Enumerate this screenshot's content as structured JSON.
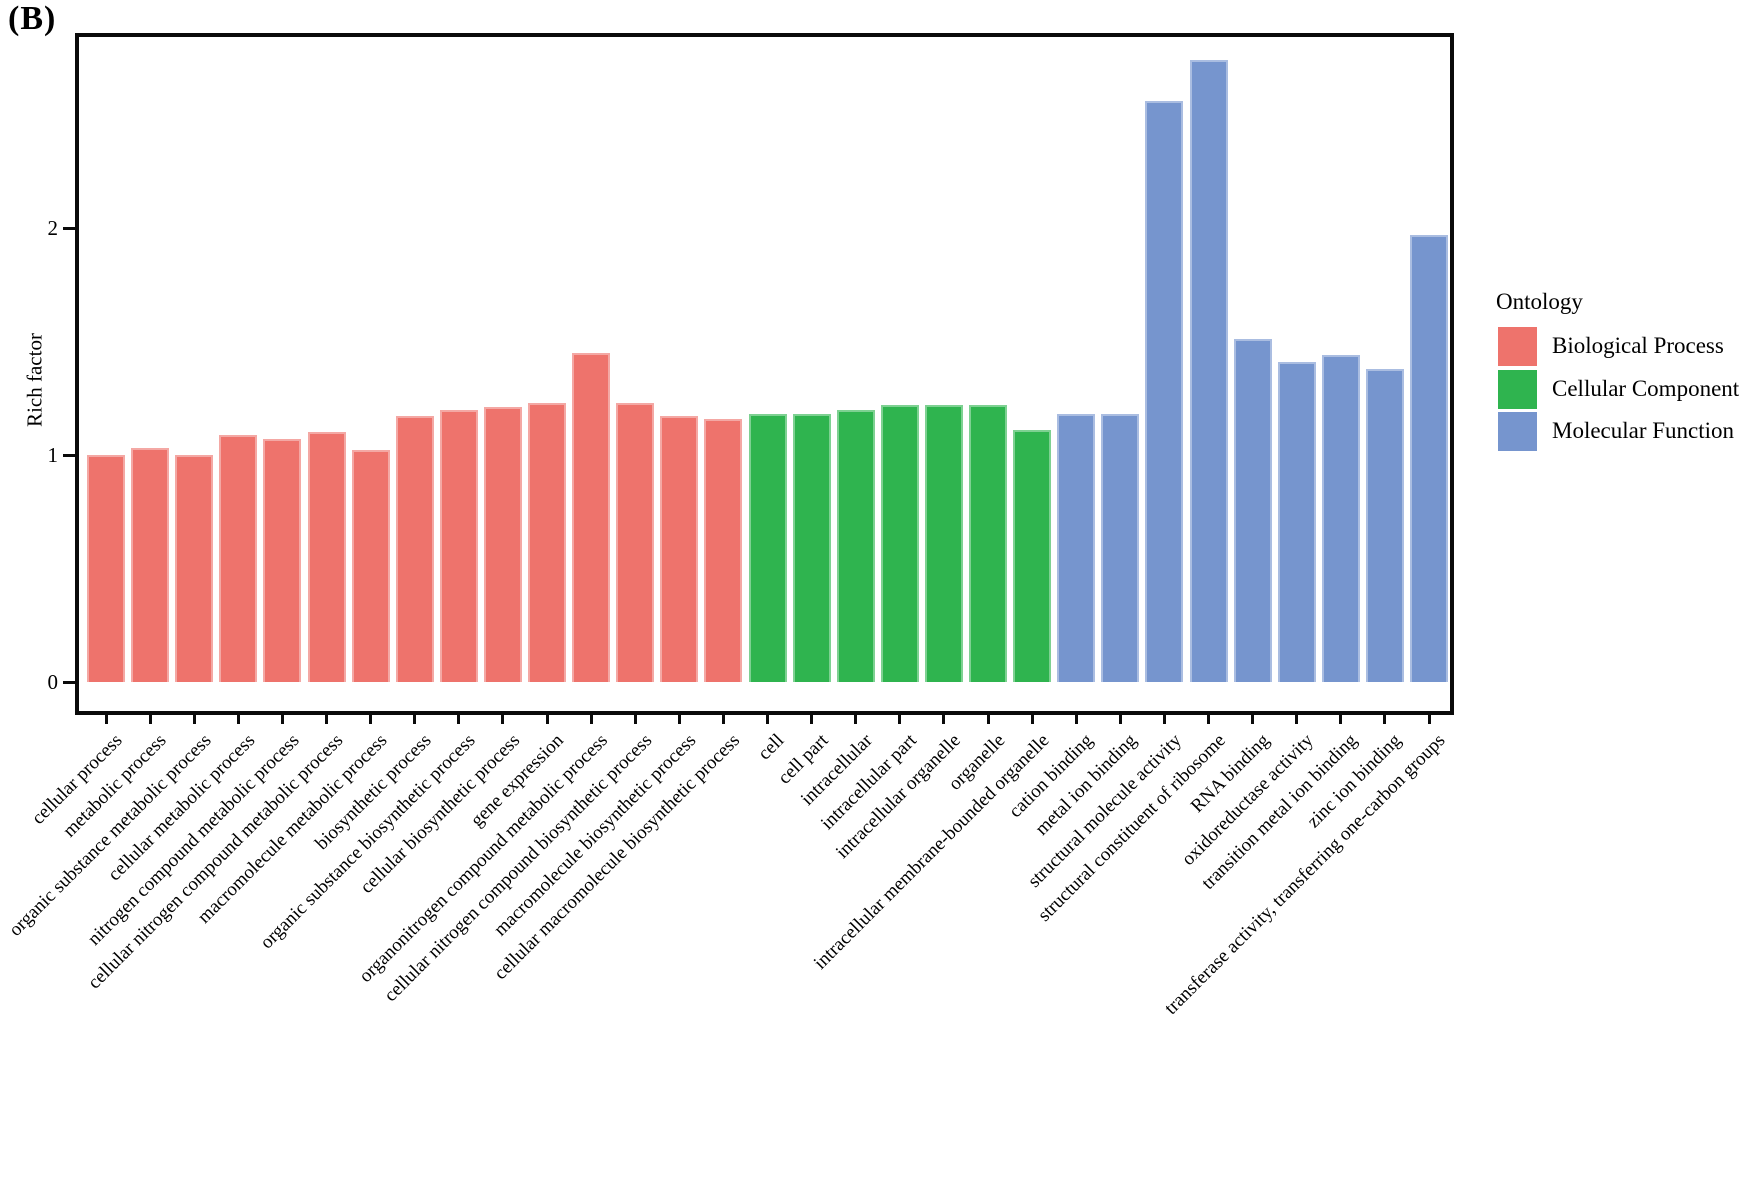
{
  "figure_label": "(B)",
  "y_axis": {
    "title": "Rich factor",
    "ticks": [
      0,
      1,
      2
    ]
  },
  "legend": {
    "title": "Ontology",
    "items": [
      {
        "label": "Biological Process",
        "color": "#ee736c"
      },
      {
        "label": "Cellular Component",
        "color": "#2fb44f"
      },
      {
        "label": "Molecular Function",
        "color": "#7695ce"
      }
    ]
  },
  "chart_data": {
    "type": "bar",
    "title": "",
    "xlabel": "",
    "ylabel": "Rich factor",
    "ylim": [
      0,
      2.87
    ],
    "yticks": [
      0,
      1,
      2
    ],
    "grid": false,
    "legend_position": "right",
    "categories": [
      "cellular process",
      "metabolic process",
      "organic substance metabolic process",
      "cellular metabolic process",
      "nitrogen compound metabolic process",
      "cellular nitrogen compound metabolic process",
      "macromolecule metabolic process",
      "biosynthetic process",
      "organic substance biosynthetic process",
      "cellular biosynthetic process",
      "gene expression",
      "organonitrogen compound metabolic process",
      "cellular nitrogen compound biosynthetic process",
      "macromolecule biosynthetic process",
      "cellular macromolecule biosynthetic process",
      "cell",
      "cell part",
      "intracellular",
      "intracellular part",
      "intracellular organelle",
      "organelle",
      "intracellular membrane-bounded organelle",
      "cation binding",
      "metal ion binding",
      "structural molecule activity",
      "structural constituent of ribosome",
      "RNA binding",
      "oxidoreductase activity",
      "transition metal ion binding",
      "zinc ion binding",
      "transferase activity, transferring one-carbon groups"
    ],
    "bars": [
      {
        "label": "cellular process",
        "value": 1.0,
        "group": "Biological Process"
      },
      {
        "label": "metabolic process",
        "value": 1.03,
        "group": "Biological Process"
      },
      {
        "label": "organic substance metabolic process",
        "value": 1.0,
        "group": "Biological Process"
      },
      {
        "label": "cellular metabolic process",
        "value": 1.09,
        "group": "Biological Process"
      },
      {
        "label": "nitrogen compound metabolic process",
        "value": 1.07,
        "group": "Biological Process"
      },
      {
        "label": "cellular nitrogen compound metabolic process",
        "value": 1.1,
        "group": "Biological Process"
      },
      {
        "label": "macromolecule metabolic process",
        "value": 1.02,
        "group": "Biological Process"
      },
      {
        "label": "biosynthetic process",
        "value": 1.17,
        "group": "Biological Process"
      },
      {
        "label": "organic substance biosynthetic process",
        "value": 1.2,
        "group": "Biological Process"
      },
      {
        "label": "cellular biosynthetic process",
        "value": 1.21,
        "group": "Biological Process"
      },
      {
        "label": "gene expression",
        "value": 1.23,
        "group": "Biological Process"
      },
      {
        "label": "organonitrogen compound metabolic process",
        "value": 1.45,
        "group": "Biological Process"
      },
      {
        "label": "cellular nitrogen compound biosynthetic process",
        "value": 1.23,
        "group": "Biological Process"
      },
      {
        "label": "macromolecule biosynthetic process",
        "value": 1.17,
        "group": "Biological Process"
      },
      {
        "label": "cellular macromolecule biosynthetic process",
        "value": 1.16,
        "group": "Biological Process"
      },
      {
        "label": "cell",
        "value": 1.18,
        "group": "Cellular Component"
      },
      {
        "label": "cell part",
        "value": 1.18,
        "group": "Cellular Component"
      },
      {
        "label": "intracellular",
        "value": 1.2,
        "group": "Cellular Component"
      },
      {
        "label": "intracellular part",
        "value": 1.22,
        "group": "Cellular Component"
      },
      {
        "label": "intracellular organelle",
        "value": 1.22,
        "group": "Cellular Component"
      },
      {
        "label": "organelle",
        "value": 1.22,
        "group": "Cellular Component"
      },
      {
        "label": "intracellular membrane-bounded organelle",
        "value": 1.11,
        "group": "Cellular Component"
      },
      {
        "label": "cation binding",
        "value": 1.18,
        "group": "Molecular Function"
      },
      {
        "label": "metal ion binding",
        "value": 1.18,
        "group": "Molecular Function"
      },
      {
        "label": "structural molecule activity",
        "value": 2.56,
        "group": "Molecular Function"
      },
      {
        "label": "structural constituent of ribosome",
        "value": 2.74,
        "group": "Molecular Function"
      },
      {
        "label": "RNA binding",
        "value": 1.51,
        "group": "Molecular Function"
      },
      {
        "label": "oxidoreductase activity",
        "value": 1.41,
        "group": "Molecular Function"
      },
      {
        "label": "transition metal ion binding",
        "value": 1.44,
        "group": "Molecular Function"
      },
      {
        "label": "zinc ion binding",
        "value": 1.38,
        "group": "Molecular Function"
      },
      {
        "label": "transferase activity, transferring one-carbon groups",
        "value": 1.97,
        "group": "Molecular Function"
      }
    ]
  }
}
